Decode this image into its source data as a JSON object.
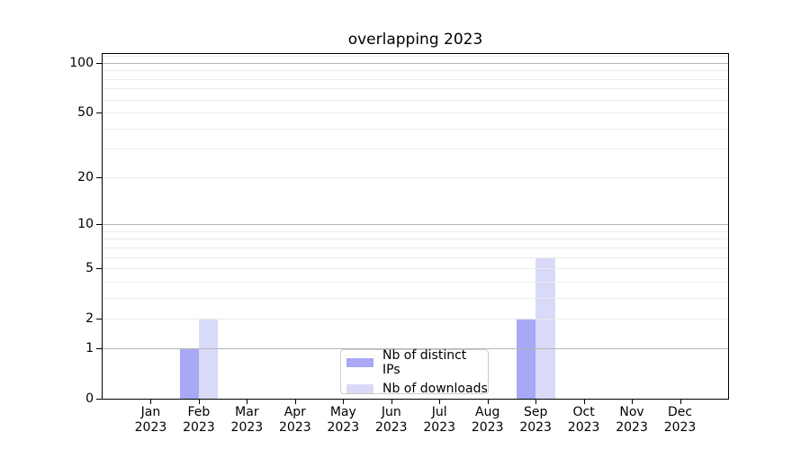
{
  "chart_data": {
    "type": "bar",
    "title": "overlapping 2023",
    "categories": [
      "Jan",
      "Feb",
      "Mar",
      "Apr",
      "May",
      "Jun",
      "Jul",
      "Aug",
      "Sep",
      "Oct",
      "Nov",
      "Dec"
    ],
    "x_year_label": "2023",
    "series": [
      {
        "name": "Nb of distinct IPs",
        "color": "#a8a8f5",
        "values": [
          0,
          1,
          0,
          0,
          0,
          0,
          0,
          0,
          2,
          0,
          0,
          0
        ]
      },
      {
        "name": "Nb of downloads",
        "color": "#d9d9f8",
        "values": [
          0,
          2,
          0,
          0,
          0,
          0,
          0,
          0,
          6,
          0,
          0,
          0
        ]
      }
    ],
    "y_scale": "log1p",
    "y_ticks": [
      0,
      1,
      2,
      5,
      10,
      20,
      50,
      100
    ],
    "y_major_gridlines": [
      1,
      10,
      100
    ],
    "y_minor_gridlines": [
      2,
      3,
      4,
      5,
      6,
      7,
      8,
      9,
      20,
      30,
      40,
      50,
      60,
      70,
      80,
      90,
      110
    ],
    "ylim": [
      0,
      115
    ],
    "grid": "horizontal",
    "legend_position": "lower center"
  },
  "colors": {
    "major_grid": "#b6b6b6",
    "minor_grid": "#ebebeb",
    "axis": "#000000",
    "legend_border": "#cccccc",
    "background": "#ffffff"
  }
}
